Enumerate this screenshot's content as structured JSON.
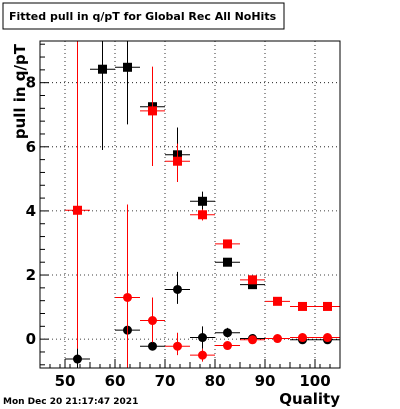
{
  "chart_data": {
    "type": "scatter",
    "title": "Fitted pull in q/pT for Global Rec All NoHits",
    "xlabel": "Quality",
    "ylabel": "pull in q/pT",
    "footer_timestamp": "Mon Dec 20 21:17:47 2021",
    "xlim": [
      45,
      105
    ],
    "ylim": [
      -0.9,
      9.3
    ],
    "x_ticks": [
      50,
      60,
      70,
      80,
      90,
      100
    ],
    "y_ticks": [
      0,
      2,
      4,
      6,
      8
    ],
    "grid": true,
    "series": [
      {
        "marker": "square",
        "color": "#000000",
        "points": [
          {
            "x": 57.5,
            "y": 8.42,
            "xerr": 2.5,
            "ylo": 5.9,
            "yhi": 9.3
          },
          {
            "x": 62.5,
            "y": 8.48,
            "xerr": 2.5,
            "ylo": 6.7,
            "yhi": 9.3
          },
          {
            "x": 67.5,
            "y": 7.25,
            "xerr": 2.5,
            "ylo": 7.0,
            "yhi": 7.5
          },
          {
            "x": 72.5,
            "y": 5.75,
            "xerr": 2.5,
            "ylo": 5.3,
            "yhi": 6.6
          },
          {
            "x": 77.5,
            "y": 4.3,
            "xerr": 2.5,
            "ylo": 4.0,
            "yhi": 4.6
          },
          {
            "x": 82.5,
            "y": 2.4,
            "xerr": 2.5,
            "ylo": 2.3,
            "yhi": 2.5
          },
          {
            "x": 87.5,
            "y": 1.7,
            "xerr": 2.5,
            "ylo": 1.65,
            "yhi": 1.75
          }
        ]
      },
      {
        "marker": "square",
        "color": "#ff0000",
        "points": [
          {
            "x": 52.5,
            "y": 4.02,
            "xerr": 2.5,
            "ylo": -0.9,
            "yhi": 9.3
          },
          {
            "x": 67.5,
            "y": 7.12,
            "xerr": 2.5,
            "ylo": 5.4,
            "yhi": 8.5
          },
          {
            "x": 72.5,
            "y": 5.55,
            "xerr": 2.5,
            "ylo": 4.9,
            "yhi": 6.1
          },
          {
            "x": 77.5,
            "y": 3.88,
            "xerr": 2.5,
            "ylo": 3.7,
            "yhi": 4.05
          },
          {
            "x": 82.5,
            "y": 2.97,
            "xerr": 2.5,
            "ylo": 2.9,
            "yhi": 3.05
          },
          {
            "x": 87.5,
            "y": 1.85,
            "xerr": 2.5,
            "ylo": 1.8,
            "yhi": 1.9
          },
          {
            "x": 92.5,
            "y": 1.18,
            "xerr": 2.5,
            "ylo": 1.14,
            "yhi": 1.22
          },
          {
            "x": 97.5,
            "y": 1.02,
            "xerr": 2.5,
            "ylo": 0.99,
            "yhi": 1.05
          },
          {
            "x": 102.5,
            "y": 1.02,
            "xerr": 2.5,
            "ylo": 0.99,
            "yhi": 1.05
          }
        ]
      },
      {
        "marker": "circle",
        "color": "#000000",
        "points": [
          {
            "x": 52.5,
            "y": -0.62,
            "xerr": 2.5,
            "ylo": -0.9,
            "yhi": -0.3
          },
          {
            "x": 62.5,
            "y": 0.28,
            "xerr": 2.5,
            "ylo": -0.1,
            "yhi": 0.7
          },
          {
            "x": 67.5,
            "y": -0.22,
            "xerr": 2.5,
            "ylo": -0.35,
            "yhi": -0.1
          },
          {
            "x": 72.5,
            "y": 1.55,
            "xerr": 2.5,
            "ylo": 1.1,
            "yhi": 2.1
          },
          {
            "x": 77.5,
            "y": 0.05,
            "xerr": 2.5,
            "ylo": -0.3,
            "yhi": 0.4
          },
          {
            "x": 82.5,
            "y": 0.2,
            "xerr": 2.5,
            "ylo": 0.05,
            "yhi": 0.35
          },
          {
            "x": 87.5,
            "y": 0.02,
            "xerr": 2.5,
            "ylo": -0.05,
            "yhi": 0.1
          },
          {
            "x": 97.5,
            "y": -0.02,
            "xerr": 2.5,
            "ylo": -0.06,
            "yhi": 0.02
          },
          {
            "x": 102.5,
            "y": -0.02,
            "xerr": 2.5,
            "ylo": -0.06,
            "yhi": 0.02
          }
        ]
      },
      {
        "marker": "circle",
        "color": "#ff0000",
        "points": [
          {
            "x": 62.5,
            "y": 1.3,
            "xerr": 2.5,
            "ylo": -0.9,
            "yhi": 4.2
          },
          {
            "x": 67.5,
            "y": 0.58,
            "xerr": 2.5,
            "ylo": -0.1,
            "yhi": 1.3
          },
          {
            "x": 72.5,
            "y": -0.22,
            "xerr": 2.5,
            "ylo": -0.5,
            "yhi": 0.2
          },
          {
            "x": 77.5,
            "y": -0.5,
            "xerr": 2.5,
            "ylo": -0.7,
            "yhi": -0.3
          },
          {
            "x": 82.5,
            "y": -0.2,
            "xerr": 2.5,
            "ylo": -0.3,
            "yhi": -0.1
          },
          {
            "x": 87.5,
            "y": -0.02,
            "xerr": 2.5,
            "ylo": -0.08,
            "yhi": 0.04
          },
          {
            "x": 92.5,
            "y": 0.02,
            "xerr": 2.5,
            "ylo": -0.02,
            "yhi": 0.06
          },
          {
            "x": 97.5,
            "y": 0.05,
            "xerr": 2.5,
            "ylo": 0.01,
            "yhi": 0.09
          },
          {
            "x": 102.5,
            "y": 0.05,
            "xerr": 2.5,
            "ylo": 0.01,
            "yhi": 0.09
          }
        ]
      }
    ]
  }
}
